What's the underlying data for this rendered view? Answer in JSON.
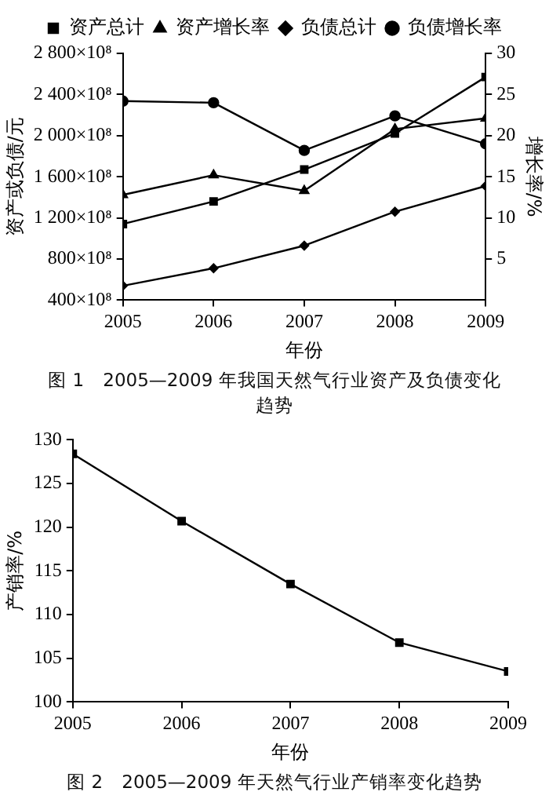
{
  "chart_data": [
    {
      "type": "line",
      "title": "图 1　2005—2009 年我国天然气行业资产及负债变化趋势",
      "xlabel": "年份",
      "ylabel": "资产或负债/元",
      "y2label": "增长率/%",
      "x": [
        2005,
        2006,
        2007,
        2008,
        2009
      ],
      "xlim": [
        2005,
        2009
      ],
      "xticks": [
        2005,
        2006,
        2007,
        2008,
        2009
      ],
      "ylim": [
        40000000000,
        280000000000
      ],
      "yticks": [
        {
          "value": 40000000000,
          "label": "400×10⁸"
        },
        {
          "value": 80000000000,
          "label": "800×10⁸"
        },
        {
          "value": 120000000000,
          "label": "1 200×10⁸"
        },
        {
          "value": 160000000000,
          "label": "1 600×10⁸"
        },
        {
          "value": 200000000000,
          "label": "2 000×10⁸"
        },
        {
          "value": 240000000000,
          "label": "2 400×10⁸"
        },
        {
          "value": 280000000000,
          "label": "2 800×10⁸"
        }
      ],
      "y2lim": [
        0,
        30
      ],
      "y2ticks": [
        5,
        10,
        15,
        20,
        25,
        30
      ],
      "grid": false,
      "legend": "top",
      "series": [
        {
          "name": "资产总计",
          "color": "#000000",
          "marker": "square",
          "values": [
            114000000000,
            136000000000,
            167000000000,
            202000000000,
            257000000000
          ]
        },
        {
          "name": "资产增长率",
          "color": "#000000",
          "marker": "triangle",
          "axis": "y2",
          "values": [
            12.8,
            15.2,
            13.3,
            20.8,
            22.1
          ]
        },
        {
          "name": "负债总计",
          "color": "#000000",
          "marker": "diamond",
          "values": [
            54000000000,
            71000000000,
            93000000000,
            126000000000,
            151000000000
          ]
        },
        {
          "name": "负债增长率",
          "color": "#000000",
          "marker": "circle",
          "axis": "y2",
          "values": [
            24.2,
            24.0,
            18.2,
            22.4,
            19.0
          ]
        }
      ]
    },
    {
      "type": "line",
      "title": "图 2　2005—2009 年天然气行业产销率变化趋势",
      "xlabel": "年份",
      "ylabel": "产销率/%",
      "x": [
        2005,
        2006,
        2007,
        2008,
        2009
      ],
      "xlim": [
        2005,
        2009
      ],
      "xticks": [
        2005,
        2006,
        2007,
        2008,
        2009
      ],
      "ylim": [
        100,
        130
      ],
      "yticks": [
        100,
        105,
        110,
        115,
        120,
        125,
        130
      ],
      "grid": false,
      "legend": false,
      "series": [
        {
          "color": "#000000",
          "marker": "square",
          "values": [
            128.4,
            120.7,
            113.5,
            106.8,
            103.5
          ]
        }
      ]
    }
  ]
}
